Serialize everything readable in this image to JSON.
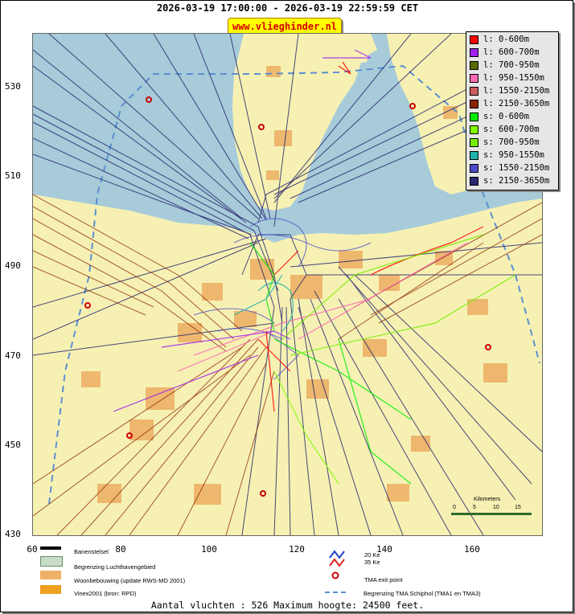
{
  "header": {
    "title": "2026-03-19 17:00:00 - 2026-03-19 22:59:59 CET",
    "brand": "www.vlieghinder.nl"
  },
  "axes": {
    "y_ticks": [
      "530",
      "510",
      "490",
      "470",
      "450",
      "430"
    ],
    "x_ticks": [
      "60",
      "80",
      "100",
      "120",
      "140",
      "160"
    ]
  },
  "legend": {
    "items": [
      {
        "label": "l: 0-600m",
        "color": "#ff0000"
      },
      {
        "label": "l: 600-700m",
        "color": "#a020f0"
      },
      {
        "label": "l: 700-950m",
        "color": "#556b00"
      },
      {
        "label": "l: 950-1550m",
        "color": "#ff69b4"
      },
      {
        "label": "l: 1550-2150m",
        "color": "#cd5c5c"
      },
      {
        "label": "l: 2150-3650m",
        "color": "#8b2500"
      },
      {
        "label": "s: 0-600m",
        "color": "#00ee00"
      },
      {
        "label": "s: 600-700m",
        "color": "#7fff00"
      },
      {
        "label": "s: 700-950m",
        "color": "#76ee00"
      },
      {
        "label": "s: 950-1550m",
        "color": "#20b2aa"
      },
      {
        "label": "s: 1550-2150m",
        "color": "#4b4bc8"
      },
      {
        "label": "s: 2150-3650m",
        "color": "#27276e"
      }
    ]
  },
  "map_legend": {
    "runways": "Banenstelsel",
    "airport": "Begrenzing Luchthavengebied",
    "housing": "Woonbebouwing (update RWS-MD 2001)",
    "vinex": "Vinex2001 (bron: RPD)",
    "ke20": "20 Ke",
    "ke35": "35 Ke",
    "tma_exit": "TMA exit point",
    "tma_boundary": "Begrenzing TMA Schiphol  (TMA1 en TMA3)"
  },
  "scale": {
    "label": "Kilometers",
    "ticks": [
      "0",
      "5",
      "10",
      "15"
    ]
  },
  "footer": {
    "text": "Aantal vluchten : 526 Maximum hoogte: 24500 feet."
  },
  "colors": {
    "sea": "#a7cbd9",
    "land": "#f6f1b3",
    "urban": "#eeb167",
    "route_dark": "#27276e",
    "route_blue": "#4b4bc8",
    "route_brown": "#8b2500"
  }
}
